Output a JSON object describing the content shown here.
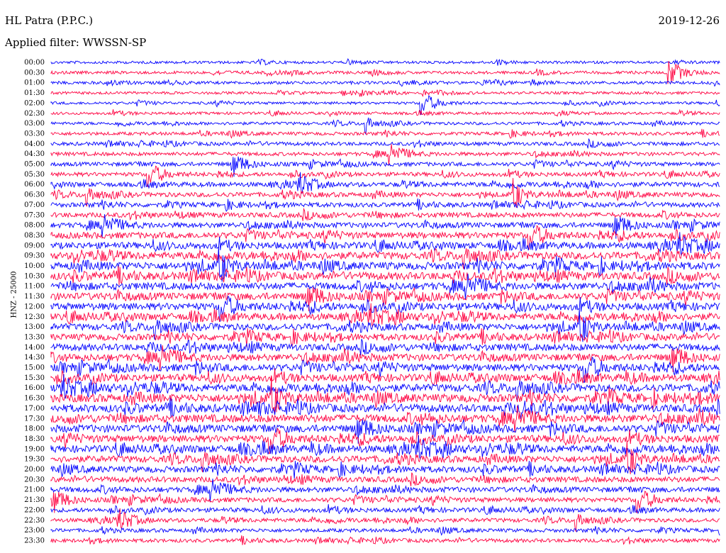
{
  "header": {
    "station": "HL Patra (P.P.C.)",
    "date": "2019-12-26",
    "filter_text": "Applied filter: WWSSN-SP"
  },
  "chart_data": {
    "type": "line",
    "title": "HL Patra (P.P.C.)",
    "ylabel": "HNZ - 25000",
    "xlabel": "",
    "filter": "WWSSN-SP",
    "row_labels": [
      "00:00",
      "00:30",
      "01:00",
      "01:30",
      "02:00",
      "02:30",
      "03:00",
      "03:30",
      "04:00",
      "04:30",
      "05:00",
      "05:30",
      "06:00",
      "06:30",
      "07:00",
      "07:30",
      "08:00",
      "08:30",
      "09:00",
      "09:30",
      "10:00",
      "10:30",
      "11:00",
      "11:30",
      "12:00",
      "12:30",
      "13:00",
      "13:30",
      "14:00",
      "14:30",
      "15:00",
      "15:30",
      "16:00",
      "16:30",
      "17:00",
      "17:30",
      "18:00",
      "18:30",
      "19:00",
      "19:30",
      "20:00",
      "20:30",
      "21:00",
      "21:30",
      "22:00",
      "22:30",
      "23:00",
      "23:30"
    ],
    "series_colors": [
      "#0000ff",
      "#ff0040"
    ],
    "activity_level": [
      0.15,
      0.2,
      0.2,
      0.15,
      0.15,
      0.15,
      0.2,
      0.25,
      0.3,
      0.3,
      0.35,
      0.35,
      0.45,
      0.45,
      0.45,
      0.5,
      0.55,
      0.7,
      0.75,
      0.85,
      0.9,
      0.9,
      0.85,
      0.85,
      0.85,
      0.8,
      0.75,
      0.75,
      0.8,
      0.8,
      0.85,
      0.85,
      0.9,
      1.0,
      0.95,
      0.95,
      0.9,
      0.85,
      0.85,
      0.75,
      0.7,
      0.6,
      0.55,
      0.45,
      0.4,
      0.35,
      0.3,
      0.3
    ],
    "grid": false
  }
}
